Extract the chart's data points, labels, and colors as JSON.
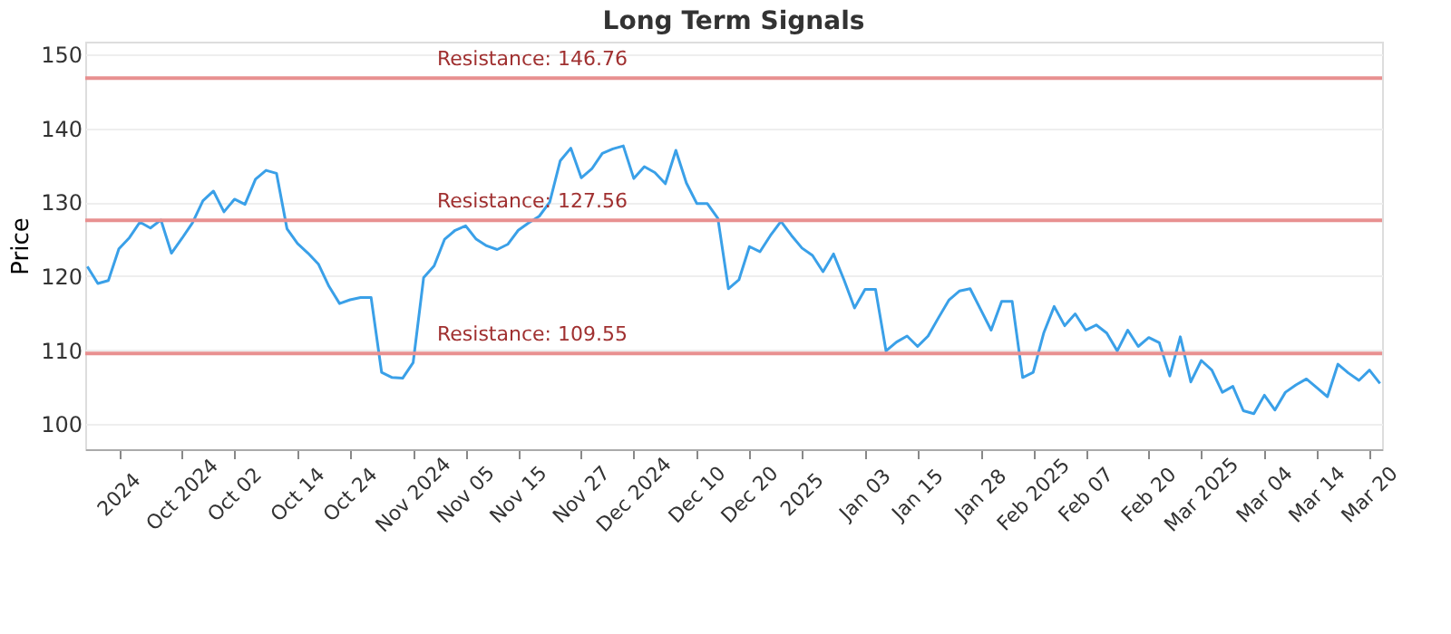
{
  "chart_data": {
    "type": "line",
    "title": "Long Term Signals",
    "ylabel": "Price",
    "categories": [
      null,
      null,
      null,
      "2024",
      null,
      null,
      null,
      null,
      null,
      "Oct 2024",
      null,
      null,
      null,
      null,
      "Oct 02",
      null,
      null,
      null,
      null,
      null,
      "Oct 14",
      null,
      null,
      null,
      null,
      "Oct 24",
      null,
      null,
      null,
      null,
      null,
      "Nov 2024",
      null,
      null,
      null,
      null,
      "Nov 05",
      null,
      null,
      null,
      null,
      "Nov 15",
      null,
      null,
      null,
      null,
      null,
      "Nov 27",
      null,
      null,
      null,
      null,
      "Dec 2024",
      null,
      null,
      null,
      null,
      null,
      "Dec 10",
      null,
      null,
      null,
      null,
      "Dec 20",
      null,
      null,
      null,
      null,
      "2025",
      null,
      null,
      null,
      null,
      null,
      "Jan 03",
      null,
      null,
      null,
      null,
      "Jan 15",
      null,
      null,
      null,
      null,
      null,
      "Jan 28",
      null,
      null,
      null,
      null,
      "Feb 2025",
      null,
      null,
      null,
      null,
      "Feb 07",
      null,
      null,
      null,
      null,
      null,
      "Feb 20",
      null,
      null,
      null,
      null,
      "Mar 2025",
      null,
      null,
      null,
      null,
      null,
      "Mar 04",
      null,
      null,
      null,
      null,
      "Mar 14",
      null,
      null,
      null,
      null,
      "Mar 20",
      null
    ],
    "series": [
      {
        "color": "#3aa0e8",
        "values": [
          121.3,
          119.0,
          119.4,
          123.7,
          125.2,
          127.3,
          126.5,
          127.6,
          123.1,
          125.1,
          127.2,
          130.2,
          131.5,
          128.7,
          130.4,
          129.7,
          133.1,
          134.3,
          133.9,
          126.4,
          124.4,
          123.1,
          121.6,
          118.6,
          116.3,
          116.8,
          117.1,
          117.1,
          107.0,
          106.3,
          106.2,
          108.3,
          119.8,
          121.4,
          125.0,
          126.2,
          126.8,
          125.0,
          124.1,
          123.6,
          124.3,
          126.2,
          127.2,
          128.1,
          130.0,
          135.6,
          137.3,
          133.3,
          134.5,
          136.6,
          137.2,
          137.6,
          133.2,
          134.8,
          134.0,
          132.5,
          137.0,
          132.6,
          129.8,
          129.8,
          127.8,
          118.3,
          119.5,
          124.0,
          123.3,
          125.5,
          127.4,
          125.5,
          123.8,
          122.8,
          120.6,
          123.0,
          119.5,
          115.7,
          118.2,
          118.2,
          109.9,
          111.1,
          111.9,
          110.5,
          111.9,
          114.4,
          116.8,
          118.0,
          118.3,
          115.5,
          112.7,
          116.6,
          116.6,
          106.3,
          107.0,
          112.3,
          115.9,
          113.3,
          114.9,
          112.7,
          113.4,
          112.3,
          109.9,
          112.7,
          110.5,
          111.7,
          111.0,
          106.5,
          111.8,
          105.7,
          108.6,
          107.3,
          104.3,
          105.1,
          101.8,
          101.4,
          103.9,
          101.9,
          104.3,
          105.3,
          106.1,
          104.9,
          103.7,
          108.1,
          106.9,
          105.9,
          107.3,
          105.5
        ]
      }
    ],
    "ylim": [
      96.6,
      151.7
    ],
    "yticks": [
      100,
      110,
      120,
      130,
      140,
      150
    ],
    "grid": "y",
    "legend": false,
    "marker": "none",
    "ref_lines": [
      {
        "axis": "y",
        "value": 146.76,
        "label": "Resistance: 146.76",
        "color": "#e89090"
      },
      {
        "axis": "y",
        "value": 127.56,
        "label": "Resistance: 127.56",
        "color": "#e89090"
      },
      {
        "axis": "y",
        "value": 109.55,
        "label": "Resistance: 109.55",
        "color": "#e89090"
      }
    ]
  }
}
